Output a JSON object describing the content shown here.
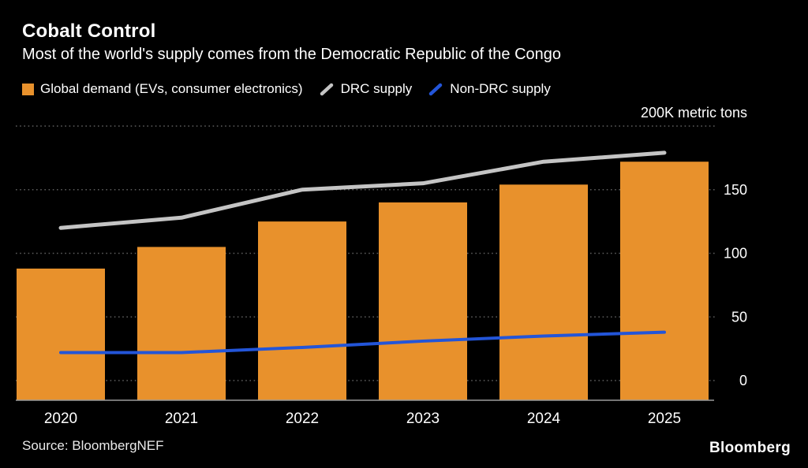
{
  "header": {
    "title": "Cobalt Control",
    "subtitle": "Most of the world's supply comes from the Democratic Republic of the Congo"
  },
  "legend": [
    {
      "label": "Global demand (EVs, consumer electronics)",
      "swatch": "square",
      "color": "#E8912C"
    },
    {
      "label": "DRC supply",
      "swatch": "line",
      "color": "#C4C4C4"
    },
    {
      "label": "Non-DRC supply",
      "swatch": "line",
      "color": "#2355D8"
    }
  ],
  "chart_data": {
    "type": "bar",
    "title": "Cobalt Control",
    "subtitle": "Most of the world's supply comes from the Democratic Republic of the Congo",
    "unit_label": "200K metric tons",
    "categories": [
      "2020",
      "2021",
      "2022",
      "2023",
      "2024",
      "2025"
    ],
    "series": [
      {
        "name": "Global demand (EVs, consumer electronics)",
        "type": "bar",
        "color": "#E8912C",
        "values": [
          88,
          105,
          125,
          140,
          154,
          172
        ]
      },
      {
        "name": "DRC supply",
        "type": "line",
        "color": "#C4C4C4",
        "values": [
          120,
          128,
          150,
          155,
          172,
          179
        ]
      },
      {
        "name": "Non-DRC supply",
        "type": "line",
        "color": "#2355D8",
        "values": [
          22,
          22,
          26,
          31,
          35,
          38
        ]
      }
    ],
    "ylim": [
      0,
      200
    ],
    "yticks": [
      0,
      50,
      100,
      150
    ],
    "grid": true,
    "grid_style": "dotted",
    "axis_side": "right",
    "legend_position": "top"
  },
  "footer": {
    "source": "Source:  BloombergNEF",
    "logo": "Bloomberg"
  }
}
